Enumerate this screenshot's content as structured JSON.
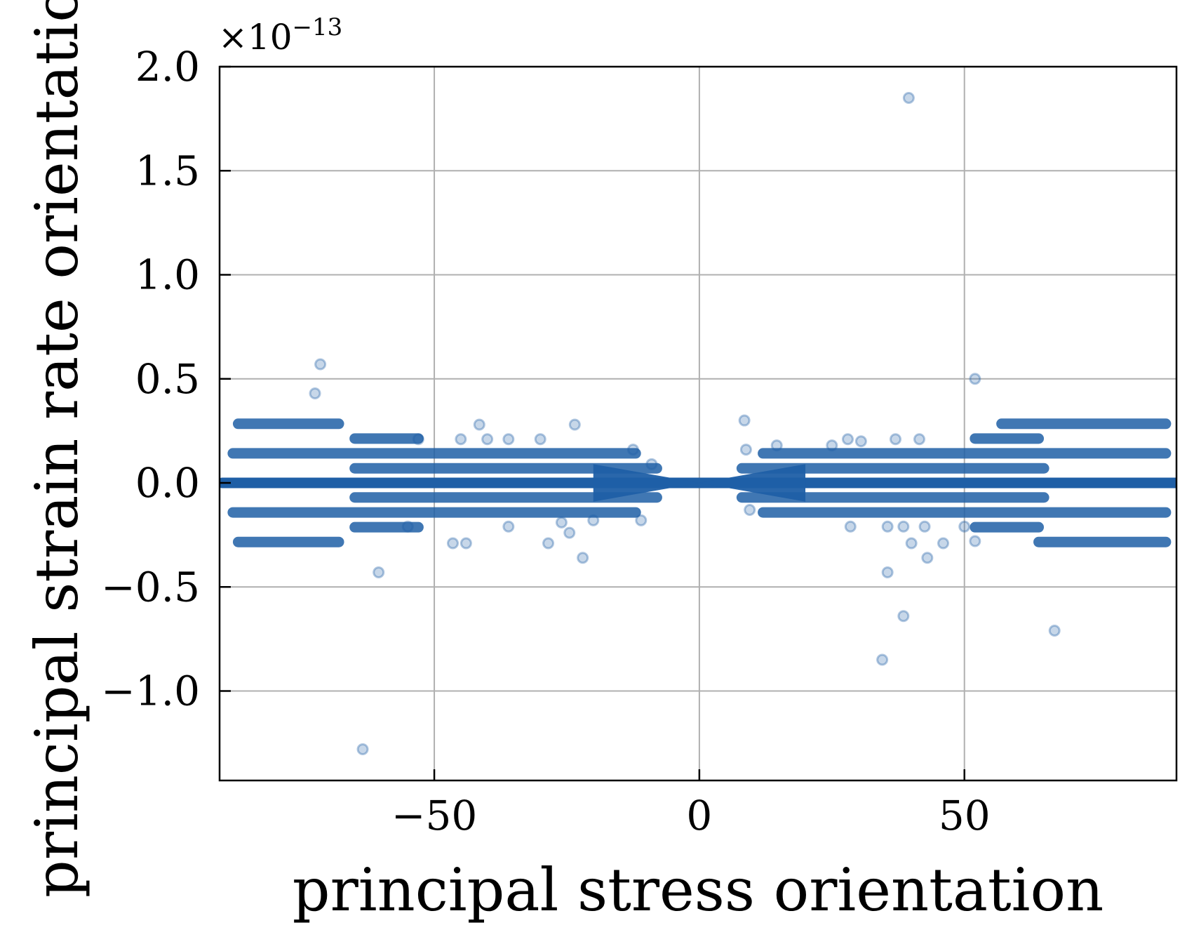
{
  "chart_data": {
    "type": "scatter",
    "title": "",
    "xlabel": "principal stress orientation",
    "ylabel": "principal strain rate orientation",
    "y_offset_text": "×10",
    "y_offset_exponent": "−13",
    "xlim": [
      -90.5,
      90
    ],
    "ylim": [
      -1.43,
      2.0
    ],
    "grid": true,
    "legend": "none",
    "marker_color": "#1f5fa6",
    "x_ticks": [
      {
        "value": -50,
        "label": "−50"
      },
      {
        "value": 0,
        "label": "0"
      },
      {
        "value": 50,
        "label": "50"
      }
    ],
    "y_ticks": [
      {
        "value": -1.0,
        "label": "−1.0"
      },
      {
        "value": -0.5,
        "label": "−0.5"
      },
      {
        "value": 0.0,
        "label": "0.0"
      },
      {
        "value": 0.5,
        "label": "0.5"
      },
      {
        "value": 1.0,
        "label": "1.0"
      },
      {
        "value": 1.5,
        "label": "1.5"
      },
      {
        "value": 2.0,
        "label": "2.0"
      }
    ],
    "dense_bands": [
      {
        "y": 0.0,
        "x_ranges": [
          [
            -90,
            90
          ]
        ]
      },
      {
        "y": 0.142,
        "x_ranges": [
          [
            -88,
            -12
          ],
          [
            12,
            88
          ]
        ]
      },
      {
        "y": -0.142,
        "x_ranges": [
          [
            -88,
            -12
          ],
          [
            12,
            88
          ]
        ]
      },
      {
        "y": 0.07,
        "x_ranges": [
          [
            -65,
            -8
          ],
          [
            8,
            65
          ]
        ]
      },
      {
        "y": -0.07,
        "x_ranges": [
          [
            -65,
            -8
          ],
          [
            8,
            65
          ]
        ]
      },
      {
        "y": 0.213,
        "x_ranges": [
          [
            -65,
            -53
          ],
          [
            52,
            64
          ]
        ]
      },
      {
        "y": -0.213,
        "x_ranges": [
          [
            -65,
            -53
          ],
          [
            52,
            64
          ]
        ]
      },
      {
        "y": 0.284,
        "x_ranges": [
          [
            -87,
            -68
          ],
          [
            57,
            88
          ]
        ]
      },
      {
        "y": -0.284,
        "x_ranges": [
          [
            -87,
            -68
          ],
          [
            64,
            88
          ]
        ]
      }
    ],
    "points": [
      {
        "x": 39.5,
        "y": 1.85
      },
      {
        "x": -71.5,
        "y": 0.57
      },
      {
        "x": -72.5,
        "y": 0.43
      },
      {
        "x": 52,
        "y": 0.5
      },
      {
        "x": 8.5,
        "y": 0.3
      },
      {
        "x": -41.5,
        "y": 0.28
      },
      {
        "x": -23.5,
        "y": 0.28
      },
      {
        "x": 8.8,
        "y": 0.16
      },
      {
        "x": 14.6,
        "y": 0.18
      },
      {
        "x": 25,
        "y": 0.18
      },
      {
        "x": 28,
        "y": 0.21
      },
      {
        "x": 30.5,
        "y": 0.2
      },
      {
        "x": 37,
        "y": 0.21
      },
      {
        "x": 41.5,
        "y": 0.21
      },
      {
        "x": -53,
        "y": 0.21
      },
      {
        "x": -45,
        "y": 0.21
      },
      {
        "x": -40,
        "y": 0.21
      },
      {
        "x": -36,
        "y": 0.21
      },
      {
        "x": -30,
        "y": 0.21
      },
      {
        "x": -12.5,
        "y": 0.16
      },
      {
        "x": -9,
        "y": 0.09
      },
      {
        "x": -11,
        "y": -0.18
      },
      {
        "x": 9.5,
        "y": -0.13
      },
      {
        "x": -20,
        "y": -0.18
      },
      {
        "x": -26,
        "y": -0.19
      },
      {
        "x": -24.5,
        "y": -0.24
      },
      {
        "x": -28.5,
        "y": -0.29
      },
      {
        "x": -46.5,
        "y": -0.29
      },
      {
        "x": -44,
        "y": -0.29
      },
      {
        "x": -55,
        "y": -0.21
      },
      {
        "x": -36,
        "y": -0.21
      },
      {
        "x": -22,
        "y": -0.36
      },
      {
        "x": -60.5,
        "y": -0.43
      },
      {
        "x": -63.5,
        "y": -1.28
      },
      {
        "x": 28.5,
        "y": -0.21
      },
      {
        "x": 35.5,
        "y": -0.21
      },
      {
        "x": 38.5,
        "y": -0.21
      },
      {
        "x": 42.5,
        "y": -0.21
      },
      {
        "x": 40,
        "y": -0.29
      },
      {
        "x": 46,
        "y": -0.29
      },
      {
        "x": 50,
        "y": -0.21
      },
      {
        "x": 52,
        "y": -0.28
      },
      {
        "x": 43,
        "y": -0.36
      },
      {
        "x": 35.5,
        "y": -0.43
      },
      {
        "x": 38.5,
        "y": -0.64
      },
      {
        "x": 34.5,
        "y": -0.85
      },
      {
        "x": 67,
        "y": -0.71
      }
    ]
  }
}
